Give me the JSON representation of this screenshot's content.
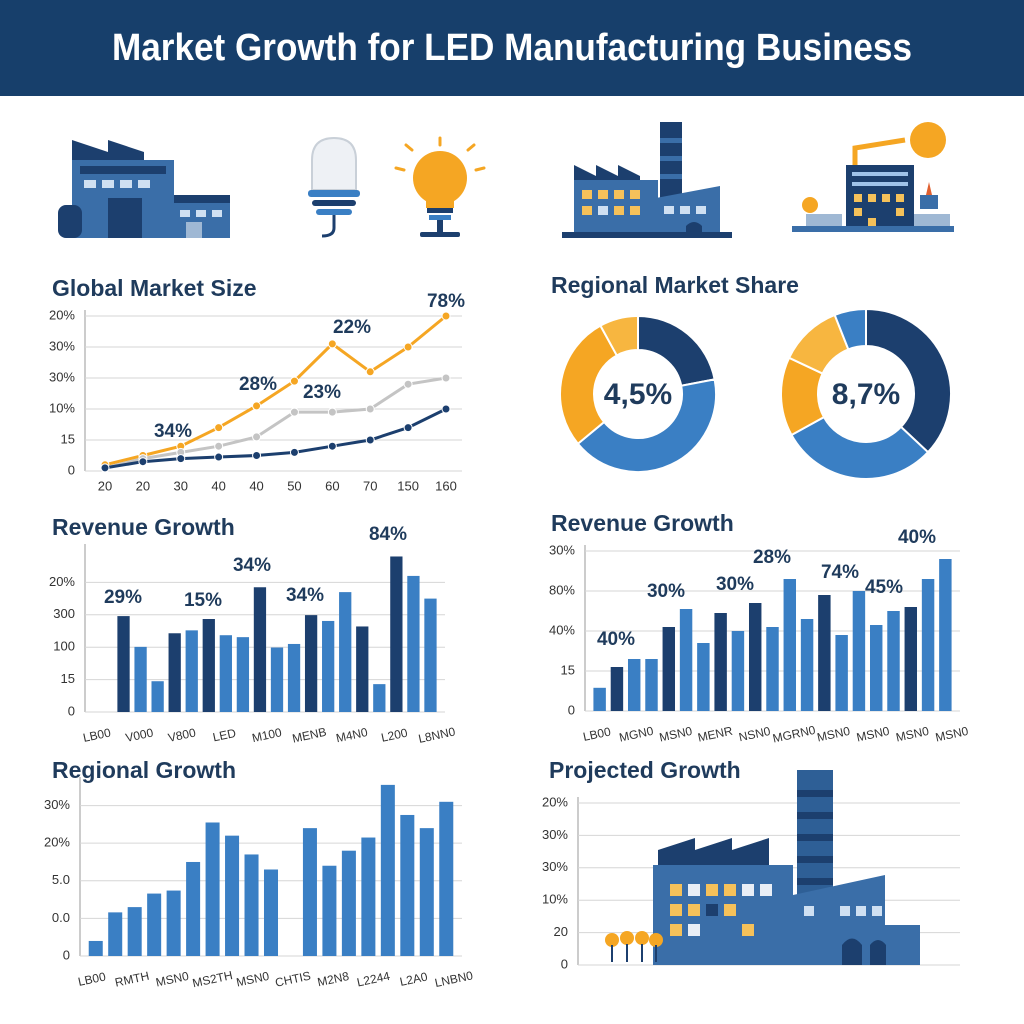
{
  "header": {
    "title": "Market Growth for LED Manufacturing Business"
  },
  "chart_data": [
    {
      "type": "line",
      "title": "Global Market Size",
      "categories": [
        "20",
        "20",
        "30",
        "40",
        "40",
        "50",
        "60",
        "70",
        "150",
        "160"
      ],
      "series": [
        {
          "color": "#f5a623",
          "values": [
            0.2,
            0.5,
            0.8,
            1.4,
            2.1,
            2.9,
            4.1,
            3.2,
            4.0,
            5.0
          ]
        },
        {
          "color": "#c4c4c4",
          "values": [
            0.1,
            0.4,
            0.6,
            0.8,
            1.1,
            1.9,
            1.9,
            2.0,
            2.8,
            3.0
          ]
        },
        {
          "color": "#1c3f6e",
          "values": [
            0.1,
            0.3,
            0.4,
            0.45,
            0.5,
            0.6,
            0.8,
            1.0,
            1.4,
            2.0
          ]
        }
      ],
      "ylim": [
        0,
        5
      ],
      "yticks": [
        0,
        {
          "value": 1,
          "label": "15"
        },
        {
          "value": 2,
          "label": "10%"
        },
        {
          "value": 3,
          "label": "30%"
        },
        {
          "value": 4,
          "label": "30%"
        },
        {
          "value": 5,
          "label": "20%"
        }
      ],
      "annotations": [
        "34%",
        "28%",
        "23%",
        "22%",
        "78%"
      ],
      "grid": true
    },
    {
      "type": "pie",
      "title": "Regional Market Share",
      "donuts": [
        {
          "center_label": "4,5%",
          "values": [
            22,
            42,
            28,
            8
          ],
          "colors": [
            "#1c3f6e",
            "#3a7fc4",
            "#f5a623",
            "#f7b640"
          ]
        },
        {
          "center_label": "8,7%",
          "values": [
            37,
            30,
            15,
            12,
            6
          ],
          "colors": [
            "#1c3f6e",
            "#3a7fc4",
            "#f5a623",
            "#f7b640",
            "#3a7fc4"
          ]
        }
      ]
    },
    {
      "type": "bar",
      "title": "Revenue Growth",
      "values": [
        2.96,
        2.01,
        0.95,
        2.43,
        2.52,
        2.87,
        2.37,
        2.31,
        3.85,
        1.99,
        2.1,
        2.99,
        2.81,
        3.7,
        2.64,
        0.86,
        4.8,
        4.2,
        3.5
      ],
      "colors": [
        "#1c3f6e",
        "#3a7fc4",
        "#3a7fc4",
        "#1c3f6e",
        "#3a7fc4",
        "#1c3f6e",
        "#3a7fc4",
        "#3a7fc4",
        "#1c3f6e",
        "#3a7fc4",
        "#3a7fc4",
        "#1c3f6e",
        "#3a7fc4",
        "#3a7fc4",
        "#1c3f6e",
        "#3a7fc4",
        "#1c3f6e",
        "#3a7fc4",
        "#3a7fc4"
      ],
      "x_tick_labels": [
        "LB00",
        "V000",
        "V800",
        "LED",
        "M100",
        "MENB",
        "M4N0",
        "L200",
        "L8NN0"
      ],
      "ylim": [
        0,
        5
      ],
      "yticks": [
        0,
        {
          "value": 1,
          "label": "15"
        },
        {
          "value": 2,
          "label": "100"
        },
        {
          "value": 3,
          "label": "300"
        },
        {
          "value": 4,
          "label": "20%"
        }
      ],
      "annotations": [
        "29%",
        "15%",
        "34%",
        "34%",
        "84%"
      ],
      "grid": true
    },
    {
      "type": "bar",
      "title": "Revenue Growth",
      "values": [
        0.58,
        1.1,
        1.3,
        1.3,
        2.1,
        2.55,
        1.7,
        2.45,
        2.0,
        2.7,
        2.1,
        3.3,
        2.3,
        2.9,
        1.9,
        3.0,
        2.15,
        2.5,
        2.6,
        3.3,
        3.8
      ],
      "colors": [
        "#3a7fc4",
        "#1c3f6e",
        "#3a7fc4",
        "#3a7fc4",
        "#1c3f6e",
        "#3a7fc4",
        "#3a7fc4",
        "#1c3f6e",
        "#3a7fc4",
        "#1c3f6e",
        "#3a7fc4",
        "#3a7fc4",
        "#3a7fc4",
        "#1c3f6e",
        "#3a7fc4",
        "#3a7fc4",
        "#3a7fc4",
        "#3a7fc4",
        "#1c3f6e",
        "#3a7fc4",
        "#3a7fc4"
      ],
      "x_tick_labels": [
        "LB00",
        "MGN0",
        "MSN0",
        "MENR",
        "NSN0",
        "MGRN0",
        "MSN0",
        "MSN0",
        "MSN0",
        "MSN0"
      ],
      "ylim": [
        0,
        4
      ],
      "yticks": [
        0,
        {
          "value": 1,
          "label": "15"
        },
        {
          "value": 2,
          "label": "40%"
        },
        {
          "value": 3,
          "label": "80%"
        },
        {
          "value": 4,
          "label": "30%"
        }
      ],
      "annotations": [
        "40%",
        "30%",
        "30%",
        "28%",
        "74%",
        "45%",
        "40%"
      ],
      "grid": true
    },
    {
      "type": "bar",
      "title": "Regional Growth",
      "values": [
        0.4,
        1.16,
        1.3,
        1.66,
        1.74,
        2.5,
        3.55,
        3.2,
        2.7,
        2.3,
        null,
        3.4,
        2.4,
        2.8,
        3.15,
        4.55,
        3.75,
        3.4,
        4.1
      ],
      "color": "#3a7fc4",
      "x_tick_labels": [
        "LB00",
        "RMTH",
        "MSN0",
        "MS2TH",
        "MSN0",
        "CHTIS",
        "M2N8",
        "L2244",
        "L2A0",
        "LNBN0"
      ],
      "ylim": [
        0,
        4.6
      ],
      "yticks": [
        0,
        {
          "value": 1,
          "label": "0.0"
        },
        {
          "value": 2,
          "label": "5.0"
        },
        {
          "value": 3,
          "label": "20%"
        },
        {
          "value": 4,
          "label": "30%"
        }
      ],
      "grid": true
    },
    {
      "type": "axes",
      "title": "Projected Growth",
      "ylim": [
        0,
        5
      ],
      "yticks": [
        0,
        {
          "value": 1,
          "label": "20"
        },
        {
          "value": 2,
          "label": "10%"
        },
        {
          "value": 3,
          "label": "30%"
        },
        {
          "value": 4,
          "label": "30%"
        },
        {
          "value": 5,
          "label": "20%"
        }
      ],
      "grid": true
    }
  ]
}
